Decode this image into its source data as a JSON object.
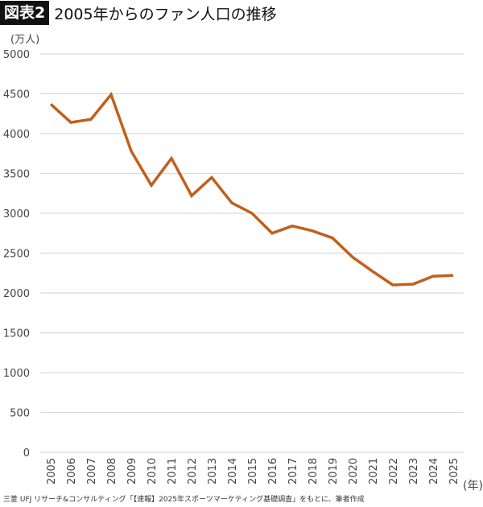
{
  "header": {
    "badge": "図表2",
    "title": "2005年からのファン人口の推移"
  },
  "unit_label": "(万人)",
  "x_unit_label": "(年)",
  "footer": {
    "source": "三菱 UFJ リサーチ&コンサルティング「【速報】2025年スポーツマーケティング基礎調査」をもとに、筆者作成"
  },
  "colors": {
    "line": "#c0601c",
    "grid": "#d9d9d9",
    "badge_bg": "#111111",
    "badge_text": "#ffffff"
  },
  "chart_data": {
    "type": "line",
    "title": "2005年からのファン人口の推移",
    "xlabel": "(年)",
    "ylabel": "(万人)",
    "ylim": [
      0,
      5000
    ],
    "yticks": [
      0,
      500,
      1000,
      1500,
      2000,
      2500,
      3000,
      3500,
      4000,
      4500,
      5000
    ],
    "grid": true,
    "legend": "none",
    "categories": [
      "2005",
      "2006",
      "2007",
      "2008",
      "2009",
      "2010",
      "2011",
      "2012",
      "2013",
      "2014",
      "2015",
      "2016",
      "2017",
      "2018",
      "2019",
      "2020",
      "2021",
      "2022",
      "2023",
      "2024",
      "2025"
    ],
    "series": [
      {
        "name": "ファン人口",
        "values": [
          4370,
          4140,
          4180,
          4490,
          3780,
          3350,
          3690,
          3220,
          3450,
          3130,
          3000,
          2750,
          2840,
          2780,
          2690,
          2450,
          2270,
          2100,
          2110,
          2210,
          2220
        ]
      }
    ]
  }
}
